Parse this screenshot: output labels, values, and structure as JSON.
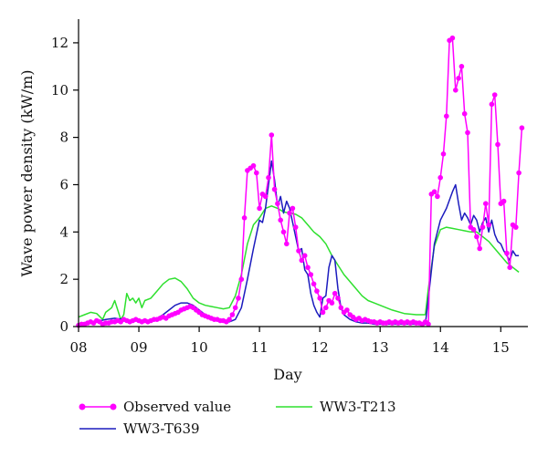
{
  "chart_data": {
    "type": "line",
    "xlabel": "Day",
    "ylabel": "Wave power density (kW/m)",
    "xlim": [
      8.0,
      15.45
    ],
    "ylim": [
      0,
      13
    ],
    "x_ticks": [
      8,
      9,
      10,
      11,
      12,
      13,
      14,
      15
    ],
    "x_tick_labels": [
      "08",
      "09",
      "10",
      "11",
      "12",
      "13",
      "14",
      "15"
    ],
    "y_ticks": [
      0,
      2,
      4,
      6,
      8,
      10,
      12
    ],
    "y_tick_labels": [
      "0",
      "2",
      "4",
      "6",
      "8",
      "10",
      "12"
    ],
    "grid": false,
    "legend_position": "bottom",
    "series": [
      {
        "name": "Observed value",
        "color": "#ff00ff",
        "marker": "circle",
        "x": [
          8.0,
          8.05,
          8.1,
          8.15,
          8.2,
          8.25,
          8.3,
          8.35,
          8.4,
          8.45,
          8.5,
          8.55,
          8.6,
          8.65,
          8.7,
          8.75,
          8.8,
          8.85,
          8.9,
          8.95,
          9.0,
          9.05,
          9.1,
          9.15,
          9.2,
          9.25,
          9.3,
          9.35,
          9.4,
          9.45,
          9.5,
          9.55,
          9.6,
          9.65,
          9.7,
          9.75,
          9.8,
          9.85,
          9.9,
          9.95,
          10.0,
          10.05,
          10.1,
          10.15,
          10.2,
          10.25,
          10.3,
          10.35,
          10.4,
          10.45,
          10.5,
          10.55,
          10.6,
          10.65,
          10.7,
          10.75,
          10.8,
          10.85,
          10.9,
          10.95,
          11.0,
          11.05,
          11.1,
          11.15,
          11.2,
          11.25,
          11.3,
          11.35,
          11.4,
          11.45,
          11.5,
          11.55,
          11.6,
          11.65,
          11.7,
          11.75,
          11.8,
          11.85,
          11.9,
          11.95,
          12.0,
          12.05,
          12.1,
          12.15,
          12.2,
          12.25,
          12.3,
          12.35,
          12.4,
          12.45,
          12.5,
          12.55,
          12.6,
          12.65,
          12.7,
          12.75,
          12.8,
          12.85,
          12.9,
          12.95,
          13.0,
          13.05,
          13.1,
          13.15,
          13.2,
          13.25,
          13.3,
          13.35,
          13.4,
          13.45,
          13.5,
          13.55,
          13.6,
          13.65,
          13.7,
          13.75,
          13.8,
          13.85,
          13.9,
          13.95,
          14.0,
          14.05,
          14.1,
          14.15,
          14.2,
          14.25,
          14.3,
          14.35,
          14.4,
          14.45,
          14.5,
          14.55,
          14.6,
          14.65,
          14.7,
          14.75,
          14.8,
          14.85,
          14.9,
          14.95,
          15.0,
          15.05,
          15.1,
          15.15,
          15.2,
          15.25,
          15.3,
          15.35
        ],
        "y": [
          0.05,
          0.1,
          0.1,
          0.15,
          0.2,
          0.15,
          0.25,
          0.2,
          0.1,
          0.15,
          0.15,
          0.2,
          0.2,
          0.25,
          0.2,
          0.3,
          0.25,
          0.2,
          0.25,
          0.3,
          0.25,
          0.2,
          0.25,
          0.2,
          0.25,
          0.3,
          0.3,
          0.35,
          0.4,
          0.35,
          0.45,
          0.5,
          0.55,
          0.6,
          0.7,
          0.75,
          0.8,
          0.85,
          0.8,
          0.7,
          0.6,
          0.5,
          0.45,
          0.4,
          0.35,
          0.3,
          0.3,
          0.25,
          0.25,
          0.2,
          0.3,
          0.5,
          0.8,
          1.2,
          2.0,
          4.6,
          6.6,
          6.7,
          6.8,
          6.5,
          5.0,
          5.6,
          5.5,
          6.3,
          8.1,
          5.8,
          5.2,
          4.5,
          4.0,
          3.5,
          4.8,
          5.0,
          4.2,
          3.2,
          2.8,
          3.0,
          2.5,
          2.2,
          1.8,
          1.5,
          1.2,
          0.6,
          0.8,
          1.1,
          1.0,
          1.4,
          1.2,
          0.8,
          0.6,
          0.7,
          0.5,
          0.4,
          0.3,
          0.35,
          0.25,
          0.3,
          0.25,
          0.2,
          0.2,
          0.15,
          0.2,
          0.15,
          0.15,
          0.2,
          0.15,
          0.2,
          0.15,
          0.2,
          0.15,
          0.2,
          0.15,
          0.2,
          0.15,
          0.15,
          0.1,
          0.2,
          0.1,
          5.6,
          5.7,
          5.5,
          6.3,
          7.3,
          8.9,
          12.1,
          12.2,
          10.0,
          10.5,
          11.0,
          9.0,
          8.2,
          4.2,
          4.1,
          3.8,
          3.3,
          4.2,
          5.2,
          4.3,
          9.4,
          9.8,
          7.7,
          5.2,
          5.3,
          3.1,
          2.5,
          4.3,
          4.2,
          6.5,
          8.4
        ]
      },
      {
        "name": "WW3-T639",
        "color": "#1c1cbe",
        "x": [
          8.0,
          8.15,
          8.3,
          8.45,
          8.6,
          8.75,
          8.9,
          9.0,
          9.15,
          9.3,
          9.4,
          9.5,
          9.6,
          9.7,
          9.8,
          9.9,
          10.0,
          10.1,
          10.2,
          10.3,
          10.4,
          10.5,
          10.6,
          10.7,
          10.8,
          10.9,
          11.0,
          11.05,
          11.1,
          11.15,
          11.2,
          11.25,
          11.3,
          11.35,
          11.4,
          11.45,
          11.5,
          11.55,
          11.6,
          11.65,
          11.7,
          11.75,
          11.8,
          11.85,
          11.9,
          11.95,
          12.0,
          12.05,
          12.1,
          12.15,
          12.2,
          12.25,
          12.3,
          12.35,
          12.4,
          12.45,
          12.5,
          12.6,
          12.7,
          12.8,
          12.9,
          13.0,
          13.2,
          13.4,
          13.6,
          13.75,
          13.8,
          13.9,
          14.0,
          14.1,
          14.2,
          14.25,
          14.3,
          14.35,
          14.4,
          14.45,
          14.5,
          14.55,
          14.6,
          14.65,
          14.7,
          14.75,
          14.8,
          14.85,
          14.9,
          14.95,
          15.0,
          15.05,
          15.1,
          15.15,
          15.2,
          15.25,
          15.3
        ],
        "y": [
          0.1,
          0.15,
          0.2,
          0.3,
          0.35,
          0.3,
          0.25,
          0.25,
          0.25,
          0.35,
          0.5,
          0.7,
          0.9,
          1.0,
          1.0,
          0.9,
          0.7,
          0.5,
          0.35,
          0.25,
          0.2,
          0.2,
          0.3,
          0.8,
          2.0,
          3.3,
          4.5,
          4.4,
          5.0,
          6.0,
          7.0,
          6.2,
          5.1,
          5.5,
          4.8,
          5.3,
          5.0,
          4.4,
          3.8,
          3.2,
          3.3,
          2.4,
          2.2,
          1.4,
          0.9,
          0.6,
          0.4,
          1.2,
          1.3,
          2.5,
          3.0,
          2.8,
          1.6,
          0.8,
          0.5,
          0.4,
          0.3,
          0.2,
          0.15,
          0.15,
          0.1,
          0.1,
          0.1,
          0.1,
          0.1,
          0.1,
          1.2,
          3.5,
          4.5,
          5.0,
          5.7,
          6.0,
          5.2,
          4.5,
          4.8,
          4.6,
          4.3,
          4.7,
          4.5,
          4.0,
          4.4,
          4.6,
          4.0,
          4.5,
          3.9,
          3.6,
          3.5,
          3.2,
          3.0,
          2.8,
          3.2,
          3.0,
          3.0
        ]
      },
      {
        "name": "WW3-T213",
        "color": "#2ee02e",
        "x": [
          8.0,
          8.1,
          8.2,
          8.3,
          8.4,
          8.45,
          8.5,
          8.55,
          8.6,
          8.7,
          8.75,
          8.8,
          8.85,
          8.9,
          8.95,
          9.0,
          9.05,
          9.1,
          9.2,
          9.3,
          9.4,
          9.5,
          9.6,
          9.7,
          9.8,
          9.9,
          10.0,
          10.1,
          10.2,
          10.3,
          10.4,
          10.5,
          10.6,
          10.7,
          10.8,
          10.9,
          11.0,
          11.1,
          11.2,
          11.3,
          11.4,
          11.5,
          11.6,
          11.7,
          11.8,
          11.9,
          12.0,
          12.1,
          12.2,
          12.3,
          12.4,
          12.5,
          12.6,
          12.7,
          12.8,
          12.9,
          13.0,
          13.2,
          13.4,
          13.6,
          13.75,
          13.8,
          13.9,
          14.0,
          14.1,
          14.2,
          14.3,
          14.4,
          14.5,
          14.6,
          14.7,
          14.8,
          14.9,
          15.0,
          15.1,
          15.2,
          15.3
        ],
        "y": [
          0.4,
          0.5,
          0.6,
          0.55,
          0.3,
          0.6,
          0.7,
          0.8,
          1.1,
          0.3,
          0.5,
          1.4,
          1.1,
          1.2,
          1.0,
          1.2,
          0.8,
          1.1,
          1.2,
          1.5,
          1.8,
          2.0,
          2.05,
          1.9,
          1.6,
          1.2,
          1.0,
          0.9,
          0.85,
          0.8,
          0.75,
          0.8,
          1.3,
          2.2,
          3.5,
          4.3,
          4.6,
          5.0,
          5.1,
          5.0,
          4.85,
          4.8,
          4.75,
          4.6,
          4.3,
          4.0,
          3.8,
          3.5,
          3.0,
          2.6,
          2.2,
          1.9,
          1.6,
          1.3,
          1.1,
          1.0,
          0.9,
          0.7,
          0.55,
          0.5,
          0.5,
          1.6,
          3.4,
          4.1,
          4.2,
          4.15,
          4.1,
          4.05,
          4.0,
          4.0,
          3.8,
          3.6,
          3.3,
          3.0,
          2.7,
          2.5,
          2.3
        ]
      }
    ]
  }
}
